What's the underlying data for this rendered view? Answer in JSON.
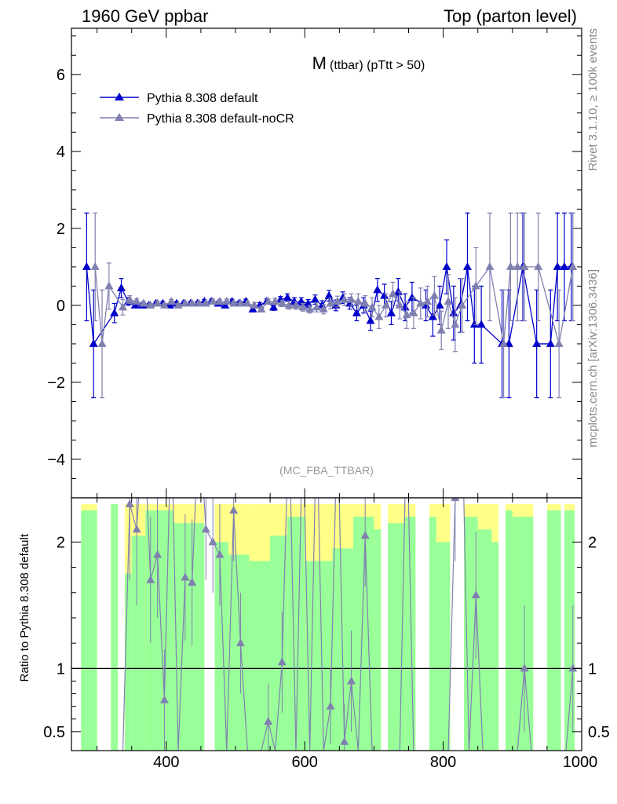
{
  "header": {
    "left": "1960 GeV ppbar",
    "right": "Top (parton level)"
  },
  "side": {
    "rivet": "Rivet 3.1.10, ≥ 100k events",
    "mcplots": "mcplots.cern.ch [arXiv:1306.3436]"
  },
  "colors": {
    "series_default": "#0000cc",
    "series_nocr": "#8080b0",
    "band_green": "#99ff99",
    "band_yellow": "#ffff88",
    "refline": "#000000"
  },
  "chart_data": [
    {
      "type": "line",
      "title": "M",
      "title_suffix": "(ttbar) (pTtt > 50)",
      "analysis_tag": "(MC_FBA_TTBAR)",
      "xlim": [
        263,
        1000
      ],
      "ylim": [
        -5,
        7.2
      ],
      "x_ticks": [
        400,
        600,
        800,
        1000
      ],
      "y_ticks": [
        -4,
        -2,
        0,
        2,
        4,
        6
      ],
      "y_tick_labels": [
        "−4",
        "−2",
        "0",
        "2",
        "4",
        "6"
      ],
      "legend_position": "top-left",
      "series": [
        {
          "name": "Pythia 8.308 default",
          "color": "#0000cc",
          "x": [
            285,
            295,
            305,
            315,
            325,
            335,
            345,
            355,
            365,
            375,
            385,
            395,
            405,
            415,
            425,
            435,
            445,
            455,
            465,
            475,
            485,
            495,
            505,
            515,
            525,
            535,
            545,
            555,
            565,
            575,
            585,
            595,
            605,
            615,
            625,
            635,
            645,
            655,
            665,
            675,
            685,
            695,
            705,
            715,
            725,
            735,
            745,
            755,
            765,
            775,
            785,
            795,
            805,
            815,
            825,
            835,
            845,
            855,
            865,
            875,
            885,
            895,
            905,
            915,
            925,
            935,
            945,
            955,
            965,
            975,
            985
          ],
          "y": [
            1.0,
            -1.0,
            null,
            null,
            -0.2,
            0.45,
            0.1,
            0.0,
            0.0,
            0.0,
            0.05,
            0.05,
            0.0,
            0.05,
            0.05,
            0.05,
            0.05,
            0.1,
            0.1,
            0.05,
            0.0,
            0.1,
            0.05,
            0.1,
            -0.1,
            0.0,
            0.1,
            -0.05,
            0.15,
            0.2,
            0.1,
            0.1,
            0.05,
            0.15,
            0.0,
            0.25,
            0.0,
            0.2,
            0.05,
            -0.2,
            0.0,
            -0.4,
            0.4,
            0.25,
            -0.2,
            0.35,
            -0.05,
            0.2,
            null,
            0.0,
            -0.3,
            0.0,
            1.0,
            -0.2,
            0.0,
            1.0,
            -0.5,
            -0.5,
            null,
            null,
            -1.0,
            -1.0,
            null,
            1.0,
            null,
            -1.0,
            null,
            -1.0,
            1.0,
            1.0,
            1.0
          ],
          "yerr": [
            1.4,
            1.4,
            null,
            null,
            0.25,
            0.25,
            0.1,
            0.06,
            0.05,
            0.05,
            0.05,
            0.05,
            0.05,
            0.05,
            0.05,
            0.05,
            0.05,
            0.05,
            0.06,
            0.06,
            0.06,
            0.06,
            0.06,
            0.06,
            0.07,
            0.07,
            0.07,
            0.08,
            0.08,
            0.1,
            0.1,
            0.1,
            0.1,
            0.12,
            0.12,
            0.14,
            0.14,
            0.15,
            0.15,
            0.2,
            0.2,
            0.25,
            0.3,
            0.3,
            0.3,
            0.35,
            0.35,
            0.4,
            null,
            0.4,
            0.5,
            0.5,
            0.7,
            0.7,
            0.7,
            1.4,
            1.0,
            1.0,
            null,
            null,
            1.4,
            1.4,
            null,
            1.4,
            null,
            1.4,
            null,
            1.4,
            1.4,
            1.4,
            1.4
          ]
        },
        {
          "name": "Pythia 8.308 default-noCR",
          "color": "#8080b0",
          "x": [
            285,
            295,
            305,
            315,
            325,
            335,
            345,
            355,
            365,
            375,
            385,
            395,
            405,
            415,
            425,
            435,
            445,
            455,
            465,
            475,
            485,
            495,
            505,
            515,
            525,
            535,
            545,
            555,
            565,
            575,
            585,
            595,
            605,
            615,
            625,
            635,
            645,
            655,
            665,
            675,
            685,
            695,
            705,
            715,
            725,
            735,
            745,
            755,
            765,
            775,
            785,
            795,
            805,
            815,
            825,
            835,
            845,
            855,
            865,
            875,
            885,
            895,
            905,
            915,
            925,
            935,
            945,
            955,
            965,
            975,
            985
          ],
          "y": [
            null,
            1.0,
            -1.0,
            0.5,
            null,
            -0.05,
            0.15,
            0.1,
            0.05,
            0.0,
            0.05,
            0.0,
            0.1,
            0.0,
            0.05,
            0.05,
            0.05,
            0.05,
            0.1,
            0.1,
            0.1,
            0.05,
            0.05,
            0.05,
            0.0,
            -0.1,
            0.1,
            0.1,
            0.05,
            0.0,
            0.0,
            -0.05,
            -0.1,
            -0.05,
            -0.1,
            0.05,
            0.1,
            0.15,
            0.15,
            0.1,
            0.05,
            -0.05,
            -0.3,
            0.0,
            0.3,
            0.0,
            -0.25,
            -0.2,
            0.05,
            0.1,
            0.25,
            -0.65,
            0.1,
            -0.5,
            0.0,
            null,
            0.5,
            null,
            1.0,
            null,
            -1.0,
            1.0,
            1.0,
            1.0,
            null,
            1.0,
            null,
            null,
            -1.0,
            null,
            1.0
          ],
          "yerr": [
            null,
            1.4,
            1.4,
            0.6,
            null,
            0.2,
            0.1,
            0.07,
            0.05,
            0.05,
            0.05,
            0.05,
            0.05,
            0.05,
            0.05,
            0.05,
            0.05,
            0.05,
            0.06,
            0.06,
            0.06,
            0.06,
            0.06,
            0.06,
            0.07,
            0.07,
            0.07,
            0.08,
            0.08,
            0.1,
            0.1,
            0.1,
            0.1,
            0.12,
            0.12,
            0.14,
            0.14,
            0.15,
            0.15,
            0.2,
            0.2,
            0.25,
            0.3,
            0.3,
            0.3,
            0.35,
            0.35,
            0.4,
            0.4,
            0.4,
            0.5,
            0.5,
            0.7,
            0.7,
            0.7,
            null,
            1.0,
            null,
            1.4,
            null,
            1.4,
            1.4,
            1.4,
            1.4,
            null,
            1.4,
            null,
            null,
            1.4,
            null,
            1.4
          ]
        }
      ]
    },
    {
      "type": "line",
      "ylabel": "Ratio to Pythia 8.308 default",
      "xlim": [
        263,
        1000
      ],
      "ylim": [
        0.35,
        2.35
      ],
      "x_ticks": [
        400,
        600,
        800,
        1000
      ],
      "x_tick_labels": [
        "400",
        "600",
        "800",
        "1000"
      ],
      "y_ticks": [
        0.5,
        1,
        2
      ],
      "y_tick_labels": [
        "0.5",
        "1",
        "2"
      ],
      "reference_line": 1,
      "bands": [
        {
          "x0": 277,
          "x1": 300,
          "g": 0.35,
          "G": 2.25,
          "Y": 2.3
        },
        {
          "x0": 320,
          "x1": 330,
          "g": 0.35,
          "G": 2.3,
          "Y": 2.3
        },
        {
          "x0": 340,
          "x1": 350,
          "g": 0.35,
          "G": 1.75,
          "Y": 2.3
        },
        {
          "x0": 350,
          "x1": 370,
          "g": 0.35,
          "G": 2.05,
          "Y": 2.3
        },
        {
          "x0": 370,
          "x1": 410,
          "g": 0.35,
          "G": 2.25,
          "Y": 2.3
        },
        {
          "x0": 410,
          "x1": 455,
          "g": 0.35,
          "G": 2.15,
          "Y": 2.3
        },
        {
          "x0": 470,
          "x1": 490,
          "g": 0.35,
          "G": 2.0,
          "Y": 2.3
        },
        {
          "x0": 490,
          "x1": 520,
          "g": 0.35,
          "G": 1.9,
          "Y": 2.3
        },
        {
          "x0": 520,
          "x1": 550,
          "g": 0.35,
          "G": 1.85,
          "Y": 2.3
        },
        {
          "x0": 550,
          "x1": 575,
          "g": 0.35,
          "G": 2.05,
          "Y": 2.3
        },
        {
          "x0": 575,
          "x1": 600,
          "g": 0.35,
          "G": 2.2,
          "Y": 2.3
        },
        {
          "x0": 600,
          "x1": 640,
          "g": 0.35,
          "G": 1.85,
          "Y": 2.3
        },
        {
          "x0": 640,
          "x1": 670,
          "g": 0.35,
          "G": 1.95,
          "Y": 2.3
        },
        {
          "x0": 670,
          "x1": 700,
          "g": 0.35,
          "G": 2.2,
          "Y": 2.3
        },
        {
          "x0": 700,
          "x1": 710,
          "g": 0.35,
          "G": 2.1,
          "Y": 2.3
        },
        {
          "x0": 720,
          "x1": 745,
          "g": 0.35,
          "G": 2.15,
          "Y": 2.3
        },
        {
          "x0": 745,
          "x1": 760,
          "g": 0.35,
          "G": 2.2,
          "Y": 2.3
        },
        {
          "x0": 780,
          "x1": 790,
          "g": 0.35,
          "G": 2.2,
          "Y": 2.3
        },
        {
          "x0": 790,
          "x1": 810,
          "g": 0.35,
          "G": 2.0,
          "Y": 2.3
        },
        {
          "x0": 830,
          "x1": 850,
          "g": 0.35,
          "G": 2.2,
          "Y": 2.3
        },
        {
          "x0": 850,
          "x1": 870,
          "g": 0.35,
          "G": 2.1,
          "Y": 2.3
        },
        {
          "x0": 870,
          "x1": 880,
          "g": 0.35,
          "G": 2.0,
          "Y": 2.3
        },
        {
          "x0": 890,
          "x1": 900,
          "g": 0.35,
          "G": 2.25,
          "Y": 2.3
        },
        {
          "x0": 900,
          "x1": 930,
          "g": 0.35,
          "G": 2.2,
          "Y": 2.3
        },
        {
          "x0": 950,
          "x1": 970,
          "g": 0.35,
          "G": 2.25,
          "Y": 2.3
        },
        {
          "x0": 975,
          "x1": 990,
          "g": 0.35,
          "G": 2.25,
          "Y": 2.3
        }
      ],
      "series": [
        {
          "name": "Pythia 8.308 default-noCR",
          "color": "#8080b0",
          "x": [
            335,
            345,
            355,
            365,
            375,
            385,
            395,
            405,
            415,
            425,
            435,
            445,
            455,
            465,
            475,
            485,
            495,
            505,
            515,
            525,
            535,
            545,
            555,
            565,
            575,
            585,
            595,
            605,
            615,
            625,
            635,
            645,
            655,
            665,
            675,
            685,
            695,
            705,
            715,
            725,
            735,
            745,
            755,
            765,
            775,
            785,
            795,
            805,
            815,
            825,
            835,
            845,
            855,
            865,
            875,
            885,
            895,
            905,
            915,
            925,
            935,
            945,
            955,
            965,
            975,
            985
          ],
          "y": [
            0.35,
            2.3,
            2.1,
            3.0,
            1.7,
            1.9,
            0.75,
            3.0,
            0.35,
            1.72,
            1.68,
            3.0,
            2.1,
            2.0,
            1.9,
            0.35,
            2.25,
            1.2,
            0.35,
            0.35,
            0.35,
            0.58,
            0.35,
            1.05,
            3.0,
            0.35,
            3.0,
            0.35,
            3.0,
            0.35,
            0.7,
            3.0,
            0.42,
            0.9,
            0.35,
            2.05,
            0.35,
            0.35,
            0.35,
            0.35,
            0.35,
            3.0,
            0.35,
            0.35,
            0.35,
            0.35,
            0.35,
            0.35,
            2.35,
            3.0,
            0.35,
            1.58,
            0.35,
            0.35,
            0.35,
            0.35,
            0.35,
            0.35,
            1.0,
            0.35,
            0.35,
            0.35,
            0.35,
            0.35,
            0.35,
            1.0
          ],
          "yerr": [
            0.3,
            0.6,
            0.6,
            0.5,
            0.5,
            0.5,
            0.4,
            0.5,
            0.3,
            0.5,
            0.5,
            0.5,
            0.4,
            0.4,
            0.4,
            0.3,
            0.4,
            0.4,
            0.3,
            0.3,
            0.3,
            0.3,
            0.3,
            0.4,
            0.5,
            0.3,
            0.5,
            0.3,
            0.5,
            0.3,
            0.3,
            0.5,
            0.3,
            0.4,
            0.3,
            0.4,
            0.3,
            0.3,
            0.3,
            0.3,
            0.3,
            0.5,
            0.3,
            0.3,
            0.3,
            0.3,
            0.3,
            0.3,
            0.5,
            0.5,
            0.3,
            0.5,
            0.3,
            0.3,
            0.3,
            0.3,
            0.3,
            0.3,
            0.5,
            0.3,
            0.3,
            0.3,
            0.3,
            0.3,
            0.3,
            0.5
          ]
        }
      ]
    }
  ]
}
